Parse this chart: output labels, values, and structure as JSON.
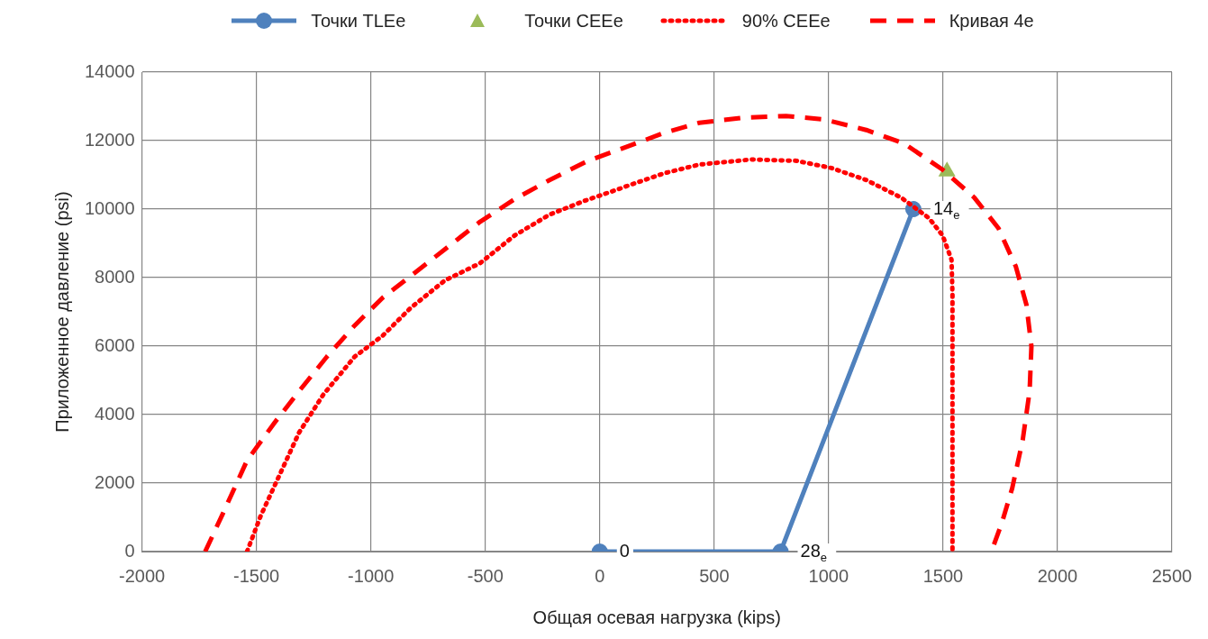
{
  "chart_data": {
    "type": "line",
    "xlabel": "Общая осевая нагрузка (kips)",
    "ylabel": "Приложенное давление (psi)",
    "xlim": [
      -2000,
      2500
    ],
    "xticks": [
      -2000,
      -1500,
      -1000,
      -500,
      0,
      500,
      1000,
      1500,
      2000,
      2500
    ],
    "ylim": [
      0,
      14000
    ],
    "yticks": [
      0,
      2000,
      4000,
      6000,
      8000,
      10000,
      12000,
      14000
    ],
    "grid": true,
    "legend": "top",
    "series": [
      {
        "name": "Точки TLEe",
        "type": "line",
        "color": "#4f81bd",
        "marker": "circle",
        "line_style": "solid",
        "x": [
          0,
          790,
          1370
        ],
        "values": [
          0,
          0,
          10000
        ]
      },
      {
        "name": "Точки CEEe",
        "type": "scatter",
        "color": "#9bbb59",
        "marker": "triangle",
        "x": [
          1517
        ],
        "values": [
          11100
        ]
      },
      {
        "name": "90% CEEe",
        "type": "line",
        "color": "#ff0000",
        "marker": "none",
        "line_style": "dotted",
        "x": [
          -1541,
          -1481,
          -1405,
          -1314,
          -1208,
          -1071,
          -949,
          -827,
          -676,
          -523,
          -372,
          -219,
          -67,
          85,
          130,
          283,
          435,
          662,
          860,
          1012,
          1164,
          1316,
          1438,
          1498,
          1537,
          1541,
          1541
        ],
        "values": [
          0,
          1050,
          2150,
          3470,
          4580,
          5690,
          6300,
          7110,
          7920,
          8420,
          9230,
          9840,
          10240,
          10590,
          10700,
          11050,
          11300,
          11450,
          11410,
          11200,
          10850,
          10340,
          9740,
          9230,
          8520,
          7520,
          0
        ]
      },
      {
        "name": "Кривая 4e",
        "type": "line",
        "color": "#ff0000",
        "marker": "none",
        "line_style": "dashed",
        "x": [
          -1724,
          -1648,
          -1541,
          -1420,
          -1314,
          -1192,
          -1071,
          -949,
          -812,
          -676,
          -523,
          -372,
          -219,
          -52,
          115,
          283,
          435,
          632,
          814,
          980,
          1164,
          1331,
          1498,
          1636,
          1742,
          1818,
          1864,
          1886,
          1878,
          1848,
          1802,
          1757,
          1711
        ],
        "values": [
          0,
          1090,
          2660,
          3770,
          4680,
          5690,
          6600,
          7410,
          8120,
          8830,
          9630,
          10290,
          10850,
          11410,
          11810,
          12230,
          12520,
          12670,
          12720,
          12620,
          12310,
          11910,
          11150,
          10340,
          9440,
          8320,
          7210,
          5990,
          4680,
          3260,
          1850,
          840,
          0
        ]
      }
    ],
    "annotations": [
      {
        "text": "0",
        "x": 0,
        "y": 0
      },
      {
        "text": "28$_{e}$",
        "x": 790,
        "y": 0
      },
      {
        "text": "14$_{e}$",
        "x": 1370,
        "y": 10000
      }
    ]
  }
}
